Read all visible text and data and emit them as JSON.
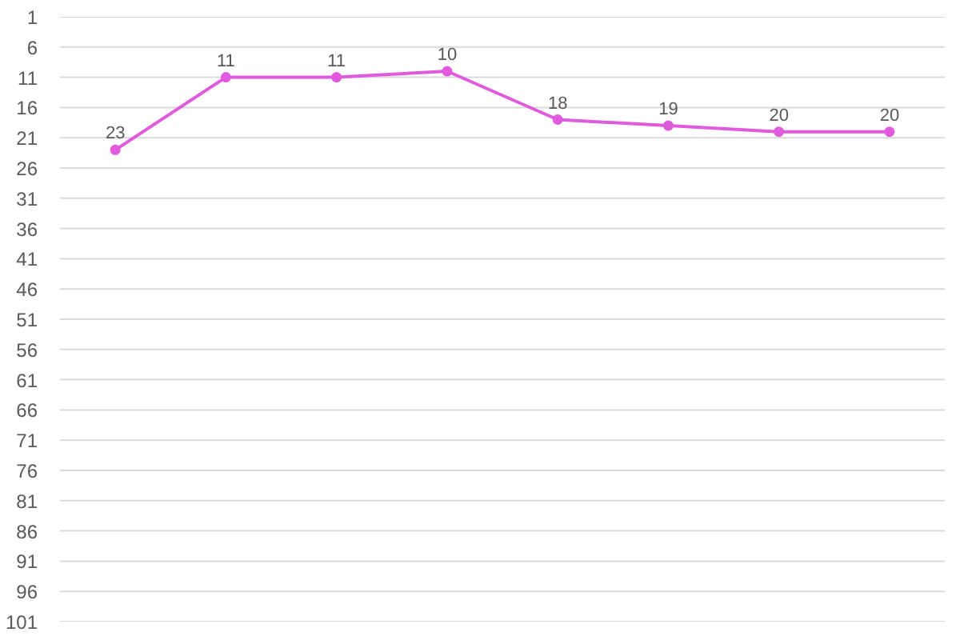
{
  "chart_data": {
    "type": "line",
    "categories": [
      null,
      null,
      null,
      null,
      null,
      null,
      null,
      null
    ],
    "series": [
      {
        "color": "#e05ade",
        "values": [
          23,
          11,
          11,
          10,
          18,
          19,
          20,
          20
        ]
      }
    ],
    "ylim": [
      101,
      1
    ],
    "yticks": [
      1,
      6,
      11,
      16,
      21,
      26,
      31,
      36,
      41,
      46,
      51,
      56,
      61,
      66,
      71,
      76,
      81,
      86,
      91,
      96,
      101
    ],
    "grid": "y",
    "tick_labels": "y",
    "data_labels": true,
    "marker": "circle",
    "line_style": "solid"
  }
}
